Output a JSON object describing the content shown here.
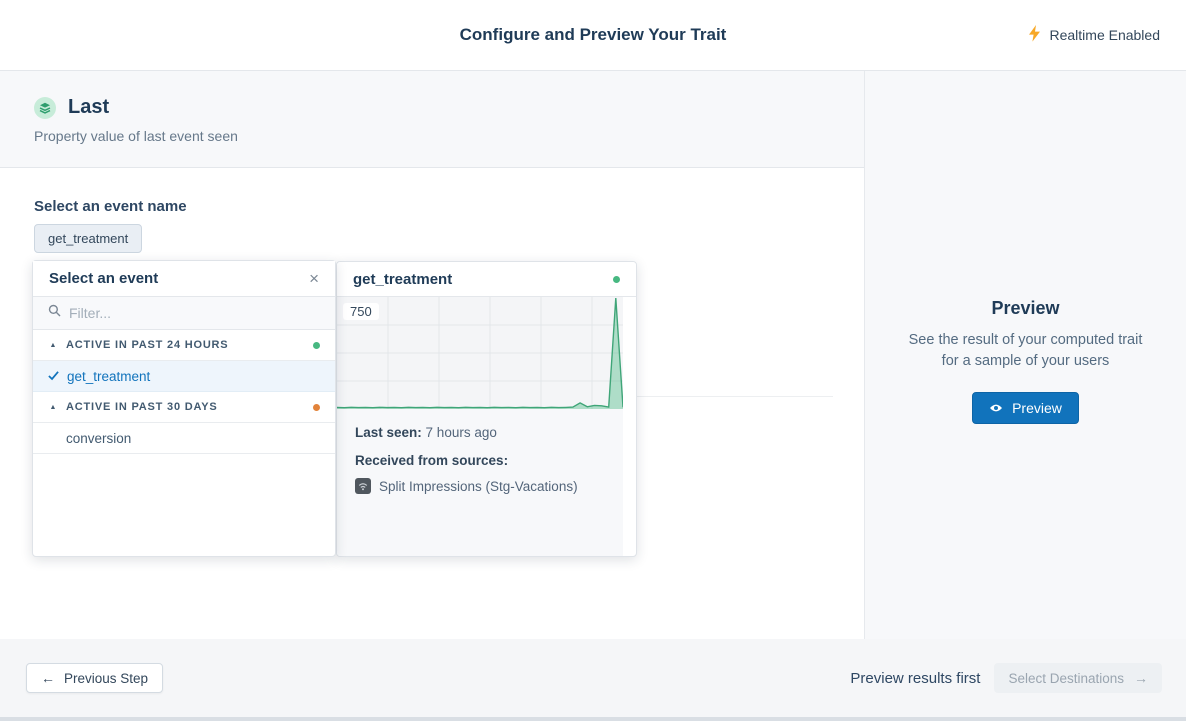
{
  "header": {
    "title": "Configure and Preview Your Trait",
    "realtime_label": "Realtime Enabled"
  },
  "trait": {
    "name": "Last",
    "description": "Property value of last event seen"
  },
  "event_select": {
    "label": "Select an event name",
    "chip": "get_treatment",
    "panel": {
      "title": "Select an event",
      "filter_placeholder": "Filter...",
      "groups": [
        {
          "label": "ACTIVE IN PAST 24 HOURS",
          "dot_color": "#47b881",
          "items": [
            {
              "name": "get_treatment",
              "selected": true
            }
          ]
        },
        {
          "label": "ACTIVE IN PAST 30 DAYS",
          "dot_color": "#e2833a",
          "items": [
            {
              "name": "conversion",
              "selected": false
            }
          ]
        }
      ]
    }
  },
  "event_detail": {
    "title": "get_treatment",
    "status_dot_color": "#47b881",
    "last_seen_label": "Last seen:",
    "last_seen_value": "7 hours ago",
    "sources_label": "Received from sources:",
    "sources": [
      {
        "name": "Split Impressions (Stg-Vacations)"
      }
    ]
  },
  "chart_data": {
    "type": "area",
    "title": "get_treatment event volume sparkline",
    "xlabel": "",
    "ylabel": "",
    "x_labels": [],
    "ylim": [
      0,
      750
    ],
    "ymax_label": "750",
    "values": [
      4,
      2,
      5,
      3,
      4,
      2,
      5,
      3,
      4,
      2,
      5,
      3,
      4,
      2,
      5,
      3,
      4,
      2,
      5,
      3,
      4,
      2,
      5,
      3,
      4,
      2,
      5,
      3,
      4,
      2,
      5,
      3,
      4,
      6,
      35,
      8,
      18,
      15,
      6,
      750,
      5
    ],
    "grid": {
      "on": true,
      "vlines": [
        51,
        102,
        153,
        204,
        255
      ],
      "hlines": [
        28,
        56,
        84
      ]
    },
    "legend": "none",
    "colors": {
      "line": "#3fa578",
      "fill": "rgba(71,184,129,0.4)"
    }
  },
  "preview_panel": {
    "title": "Preview",
    "description_line1": "See the result of your computed trait",
    "description_line2": "for a sample of your users",
    "button_label": "Preview"
  },
  "footer": {
    "previous_label": "Previous Step",
    "hint": "Preview results first",
    "next_label": "Select Destinations"
  },
  "icons": {
    "collapse": "▲",
    "close": "×",
    "back_arrow": "←",
    "forward_arrow": "→"
  },
  "colors": {
    "accent_blue": "#1173bc",
    "green_dot": "#47b881",
    "orange_dot": "#e2833a",
    "bolt_yellow": "#f7a827",
    "chart_line": "#3fa578"
  }
}
